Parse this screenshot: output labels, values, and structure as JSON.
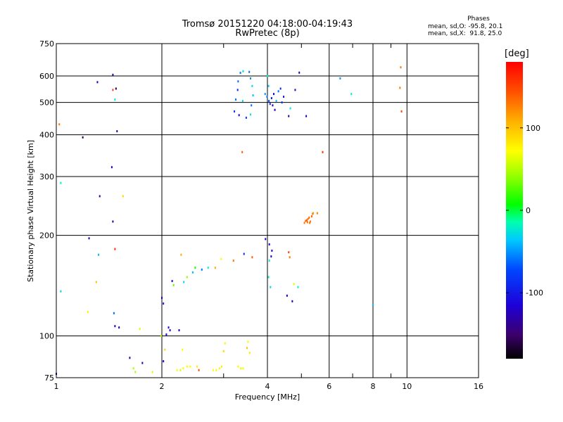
{
  "title": {
    "line1": "Tromsø 20151220 04:18:00-04:19:43",
    "line2": "RwPretec (8p)"
  },
  "phase_stats": {
    "heading": "Phases",
    "o_mode": "mean, sd,O: -95.8, 20.1",
    "x_mode": "mean, sd,X:  91.8, 25.0"
  },
  "chart_data": {
    "type": "scatter",
    "title": "Tromsø 20151220 04:18:00-04:19:43",
    "subtitle": "RwPretec (8p)",
    "xlabel": "Frequency [MHz]",
    "ylabel": "Stationary phase Virtual Height [km]",
    "xscale": "log",
    "yscale": "log",
    "xlim": [
      1,
      16
    ],
    "ylim": [
      75,
      750
    ],
    "xticks": [
      1,
      2,
      4,
      6,
      8,
      10,
      16
    ],
    "xtick_labels": [
      "1",
      "2",
      "4",
      "6",
      "8",
      "10",
      "16"
    ],
    "x_minor_ticks": [
      3,
      5,
      7,
      9
    ],
    "yticks": [
      75,
      100,
      200,
      300,
      400,
      500,
      600,
      750
    ],
    "ytick_labels": [
      "75",
      "100",
      "200",
      "300",
      "400",
      "500",
      "600",
      "750"
    ],
    "grid": true,
    "colorbar": {
      "label": "[deg]",
      "range": [
        -180,
        180
      ],
      "ticks": [
        100,
        0,
        -100
      ],
      "tick_labels": [
        "100",
        "0",
        "-100"
      ]
    },
    "points": [
      [
        1.0,
        77,
        -110
      ],
      [
        1.03,
        287,
        -20
      ],
      [
        1.03,
        136,
        -30
      ],
      [
        1.02,
        430,
        130
      ],
      [
        1.19,
        393,
        -160
      ],
      [
        1.23,
        118,
        80
      ],
      [
        1.24,
        196,
        -130
      ],
      [
        1.3,
        145,
        100
      ],
      [
        1.32,
        175,
        -40
      ],
      [
        1.33,
        262,
        -140
      ],
      [
        1.31,
        575,
        -120
      ],
      [
        1.45,
        605,
        -130
      ],
      [
        1.45,
        545,
        150
      ],
      [
        1.47,
        510,
        -20
      ],
      [
        1.48,
        550,
        -160
      ],
      [
        1.44,
        320,
        -120
      ],
      [
        1.47,
        182,
        160
      ],
      [
        1.49,
        410,
        -130
      ],
      [
        1.45,
        220,
        -130
      ],
      [
        1.46,
        117,
        -60
      ],
      [
        1.47,
        107,
        -120
      ],
      [
        1.51,
        106,
        -130
      ],
      [
        1.55,
        262,
        90
      ],
      [
        1.62,
        86,
        -125
      ],
      [
        1.66,
        80,
        50
      ],
      [
        1.68,
        78,
        45
      ],
      [
        1.73,
        105,
        60
      ],
      [
        1.76,
        83,
        -130
      ],
      [
        1.88,
        78,
        60
      ],
      [
        1.99,
        100,
        50
      ],
      [
        2.02,
        84,
        -120
      ],
      [
        2.04,
        91,
        90
      ],
      [
        2.06,
        101,
        -110
      ],
      [
        2.11,
        104,
        -120
      ],
      [
        2.09,
        106,
        -110
      ],
      [
        2.0,
        130,
        -120
      ],
      [
        2.02,
        125,
        -100
      ],
      [
        2.14,
        146,
        -110
      ],
      [
        2.16,
        142,
        30
      ],
      [
        2.21,
        79,
        70
      ],
      [
        2.26,
        79,
        60
      ],
      [
        2.3,
        80,
        70
      ],
      [
        2.36,
        81,
        75
      ],
      [
        2.41,
        81,
        70
      ],
      [
        2.52,
        81,
        80
      ],
      [
        2.29,
        91,
        70
      ],
      [
        2.24,
        104,
        -120
      ],
      [
        2.55,
        79,
        150
      ],
      [
        2.8,
        79,
        70
      ],
      [
        2.86,
        79,
        75
      ],
      [
        2.92,
        80,
        70
      ],
      [
        2.96,
        81,
        80
      ],
      [
        3.0,
        90,
        90
      ],
      [
        3.03,
        95,
        75
      ],
      [
        3.3,
        81,
        70
      ],
      [
        3.36,
        80,
        65
      ],
      [
        3.41,
        80,
        70
      ],
      [
        3.5,
        92,
        100
      ],
      [
        3.52,
        96,
        75
      ],
      [
        3.56,
        89,
        80
      ],
      [
        2.27,
        175,
        110
      ],
      [
        2.31,
        145,
        -30
      ],
      [
        2.36,
        150,
        40
      ],
      [
        2.45,
        155,
        -40
      ],
      [
        2.49,
        160,
        10
      ],
      [
        2.6,
        158,
        -60
      ],
      [
        2.71,
        160,
        -20
      ],
      [
        2.84,
        160,
        110
      ],
      [
        2.95,
        170,
        70
      ],
      [
        3.2,
        168,
        130
      ],
      [
        3.43,
        176,
        -90
      ],
      [
        3.62,
        172,
        140
      ],
      [
        4.05,
        168,
        -20
      ],
      [
        4.6,
        178,
        150
      ],
      [
        4.63,
        172,
        130
      ],
      [
        4.55,
        132,
        -120
      ],
      [
        4.71,
        127,
        -130
      ],
      [
        4.76,
        143,
        60
      ],
      [
        4.89,
        140,
        -20
      ],
      [
        4.08,
        140,
        -30
      ],
      [
        4.03,
        150,
        -20
      ],
      [
        4.12,
        180,
        -110
      ],
      [
        3.95,
        195,
        -120
      ],
      [
        4.05,
        188,
        -110
      ],
      [
        4.1,
        173,
        -120
      ],
      [
        5.1,
        218,
        130
      ],
      [
        5.14,
        221,
        135
      ],
      [
        5.18,
        222,
        140
      ],
      [
        5.22,
        224,
        130
      ],
      [
        5.26,
        226,
        135
      ],
      [
        5.3,
        220,
        130
      ],
      [
        5.35,
        228,
        140
      ],
      [
        5.38,
        232,
        125
      ],
      [
        5.2,
        219,
        135
      ],
      [
        5.28,
        218,
        130
      ],
      [
        5.4,
        233,
        120
      ],
      [
        5.55,
        233,
        125
      ],
      [
        3.39,
        355,
        140
      ],
      [
        5.75,
        355,
        160
      ],
      [
        5.16,
        455,
        -120
      ],
      [
        4.6,
        455,
        -130
      ],
      [
        4.93,
        614,
        -130
      ],
      [
        6.45,
        590,
        -50
      ],
      [
        6.94,
        530,
        -20
      ],
      [
        9.6,
        637,
        130
      ],
      [
        9.55,
        553,
        130
      ],
      [
        9.65,
        470,
        150
      ],
      [
        8.0,
        124,
        -40
      ],
      [
        4.8,
        545,
        -110
      ],
      [
        4.65,
        480,
        -20
      ],
      [
        3.35,
        613,
        -60
      ],
      [
        3.41,
        620,
        -30
      ],
      [
        3.3,
        578,
        -60
      ],
      [
        3.29,
        545,
        -90
      ],
      [
        3.25,
        510,
        -60
      ],
      [
        3.22,
        470,
        -80
      ],
      [
        3.32,
        458,
        -110
      ],
      [
        3.55,
        617,
        -60
      ],
      [
        3.58,
        590,
        -50
      ],
      [
        3.62,
        560,
        -30
      ],
      [
        3.64,
        525,
        -40
      ],
      [
        3.6,
        490,
        -60
      ],
      [
        3.58,
        460,
        -20
      ],
      [
        3.48,
        450,
        -80
      ],
      [
        3.4,
        505,
        -30
      ],
      [
        3.94,
        530,
        -50
      ],
      [
        3.99,
        520,
        -60
      ],
      [
        4.04,
        505,
        -70
      ],
      [
        4.07,
        495,
        -90
      ],
      [
        4.11,
        515,
        -100
      ],
      [
        4.14,
        490,
        -120
      ],
      [
        4.17,
        530,
        -110
      ],
      [
        4.2,
        475,
        -130
      ],
      [
        4.03,
        560,
        -30
      ],
      [
        4.0,
        600,
        -20
      ],
      [
        4.24,
        505,
        -40
      ],
      [
        4.3,
        540,
        -60
      ],
      [
        4.36,
        550,
        -90
      ],
      [
        4.4,
        500,
        -80
      ],
      [
        4.45,
        520,
        -100
      ]
    ]
  }
}
